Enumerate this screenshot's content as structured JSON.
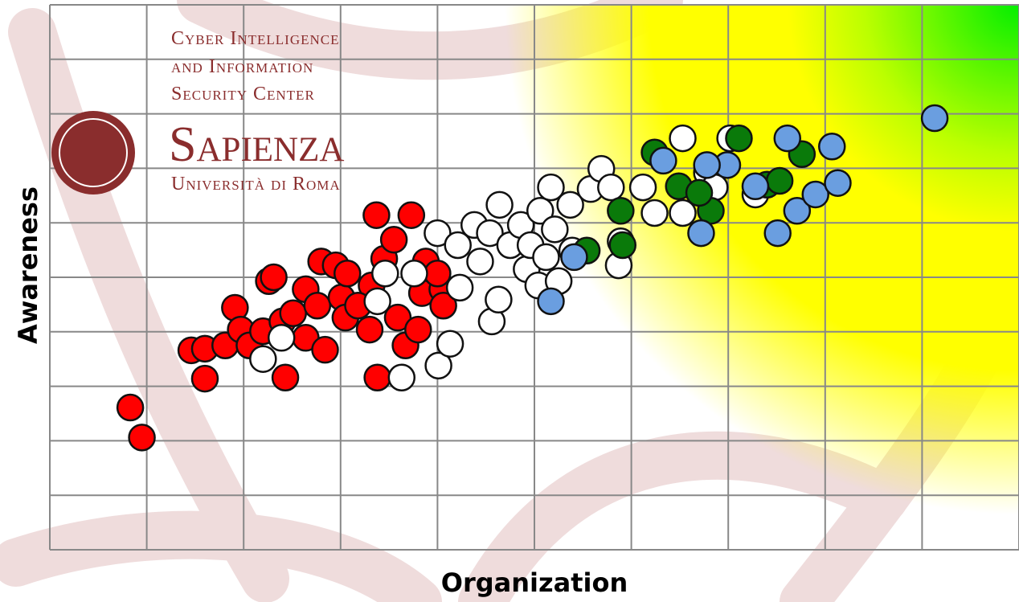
{
  "chart_data": {
    "type": "scatter",
    "logo_lines": [
      "Cyber Intelligence",
      "and Information",
      "Security Center"
    ],
    "logo_name": "Sapienza",
    "logo_subtitle": "Università di Roma",
    "x_label": "Organization",
    "y_label": "Awareness",
    "xlim": [
      0,
      10
    ],
    "ylim": [
      0,
      10
    ],
    "xticks": [
      0,
      1,
      2,
      3,
      4,
      5,
      6,
      7,
      8,
      9,
      10
    ],
    "yticks": [
      0,
      1,
      2,
      3,
      4,
      5,
      6,
      7,
      8,
      9,
      10
    ],
    "grid": true,
    "series": [
      {
        "color": "#ff0000",
        "x": [
          0.83,
          0.95,
          1.46,
          1.6,
          1.6,
          1.81,
          1.91,
          1.97,
          2.06,
          2.2,
          2.26,
          2.31,
          2.43,
          2.4,
          2.51,
          2.64,
          2.64,
          2.76,
          2.8,
          2.84,
          2.95,
          3.01,
          3.07,
          3.05,
          3.3,
          3.32,
          3.38,
          3.37,
          3.45,
          3.55,
          3.59,
          3.67,
          3.73,
          3.8,
          3.84,
          3.88,
          4.05,
          4.06,
          4.0,
          3.18
        ],
        "values": [
          2.61,
          2.06,
          3.66,
          3.14,
          3.69,
          3.75,
          4.44,
          4.04,
          3.75,
          4.01,
          4.93,
          5.0,
          3.16,
          4.19,
          4.34,
          4.78,
          3.89,
          4.48,
          5.29,
          3.67,
          5.22,
          4.63,
          5.07,
          4.26,
          4.04,
          4.85,
          3.16,
          6.14,
          5.34,
          5.69,
          4.26,
          3.75,
          6.14,
          4.04,
          4.71,
          5.29,
          4.78,
          4.48,
          5.07,
          4.48
        ]
      },
      {
        "color": "#ffffff",
        "x": [
          2.39,
          2.2,
          3.38,
          3.46,
          3.63,
          3.76,
          4.01,
          4.13,
          4.0,
          4.21,
          4.23,
          4.44,
          4.38,
          4.56,
          4.63,
          4.64,
          4.54,
          4.75,
          4.86,
          4.92,
          4.96,
          5.04,
          5.06,
          5.17,
          5.21,
          5.25,
          5.37,
          5.39,
          5.58,
          5.69,
          5.79,
          5.87,
          5.89,
          6.12,
          6.24,
          6.53,
          6.53,
          6.78,
          6.86,
          7.02,
          7.28,
          5.12
        ],
        "values": [
          3.89,
          3.5,
          4.56,
          5.07,
          3.16,
          5.07,
          3.38,
          3.78,
          5.81,
          5.59,
          4.81,
          5.29,
          5.96,
          4.19,
          4.59,
          6.33,
          5.81,
          5.59,
          5.96,
          5.15,
          5.59,
          4.85,
          6.22,
          6.65,
          5.88,
          4.93,
          6.33,
          5.49,
          6.62,
          6.99,
          6.65,
          5.22,
          5.66,
          6.65,
          6.18,
          7.55,
          6.18,
          6.92,
          6.65,
          7.55,
          6.52,
          5.37
        ]
      },
      {
        "color": "#0a7a0a",
        "x": [
          5.89,
          5.91,
          5.54,
          6.24,
          6.49,
          6.82,
          7.11,
          7.4,
          7.53,
          7.76,
          6.7
        ],
        "values": [
          6.22,
          5.59,
          5.49,
          7.29,
          6.67,
          6.22,
          7.55,
          6.7,
          6.77,
          7.26,
          6.55
        ]
      },
      {
        "color": "#6a9ee0",
        "x": [
          5.17,
          5.41,
          6.33,
          6.72,
          6.99,
          7.28,
          7.51,
          7.61,
          7.71,
          7.9,
          8.07,
          8.13,
          9.13,
          6.78
        ],
        "values": [
          4.56,
          5.37,
          7.14,
          5.81,
          7.06,
          6.67,
          5.81,
          7.55,
          6.22,
          6.52,
          7.4,
          6.73,
          7.92,
          7.06
        ]
      }
    ]
  }
}
